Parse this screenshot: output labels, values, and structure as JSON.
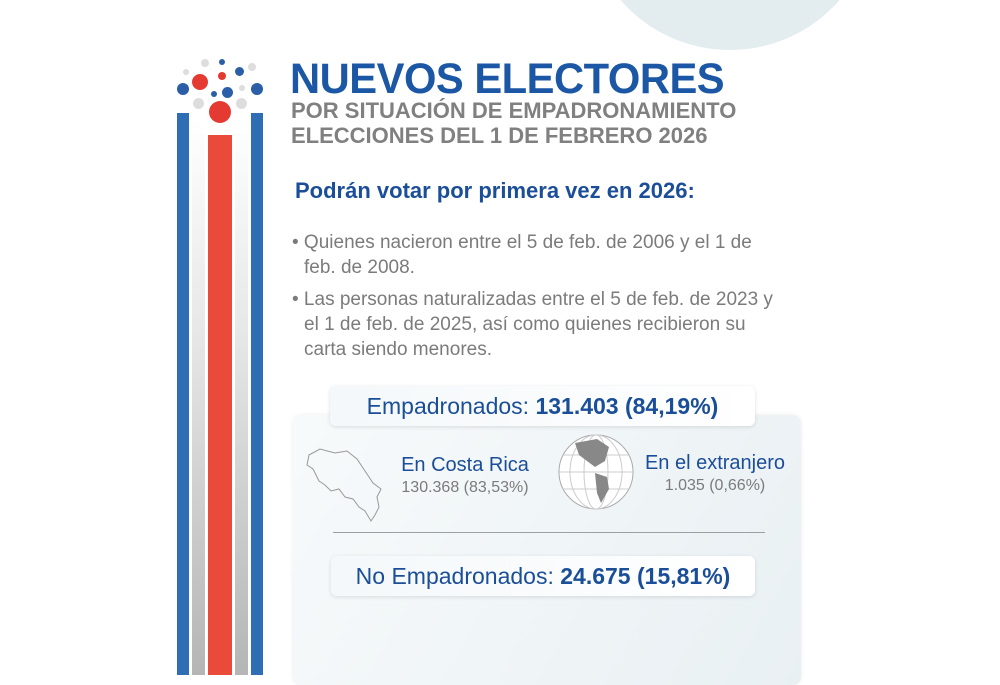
{
  "header": {
    "title": "NUEVOS ELECTORES",
    "subtitle_1": "POR SITUACIÓN DE EMPADRONAMIENTO",
    "subtitle_2": "ELECCIONES DEL 1 DE FEBRERO 2026"
  },
  "intro": {
    "heading": "Podrán votar por primera vez en 2026:",
    "bullets": [
      "• Quienes nacieron entre el 5 de feb. de 2006 y el 1 de feb. de 2008.",
      "• Las personas naturalizadas entre el 5 de feb. de 2023 y el 1 de feb. de 2025, así como quienes recibieron su carta siendo menores."
    ]
  },
  "stats": {
    "registered": {
      "label": "Empadronados:",
      "value": "131.403 (84,19%)"
    },
    "costa_rica": {
      "label": "En Costa Rica",
      "value": "130.368 (83,53%)"
    },
    "abroad": {
      "label": "En el extranjero",
      "value": "1.035 (0,66%)"
    },
    "not_registered": {
      "label": "No Empadronados:",
      "value": "24.675 (15,81%)"
    }
  },
  "colors": {
    "blue": "#1b57a4",
    "red": "#ea4335",
    "gray": "#808080"
  }
}
